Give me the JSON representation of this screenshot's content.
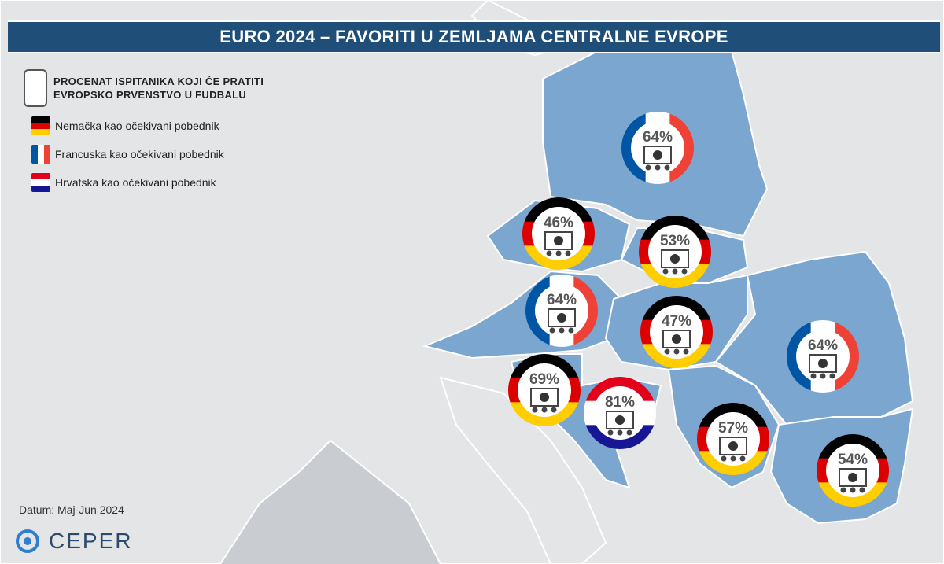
{
  "title": "EURO 2024 – FAVORITI U ZEMLJAMA CENTRALNE EVROPE",
  "legend": {
    "main": "PROCENAT ISPITANIKA KOJI ĆE PRATITI EVROPSKO PRVENSTVO U FUDBALU",
    "germany": "Nemačka kao očekivani pobednik",
    "france": "Francuska kao očekivani pobednik",
    "croatia": "Hrvatska kao očekivani pobednik"
  },
  "date": "Datum: Maj-Jun 2024",
  "logo": "CEPER",
  "colors": {
    "highlight": "#7aa6d0",
    "land": "#e3e5e7",
    "sea": "#c9cdd1",
    "title_bg": "#1f4e79"
  },
  "markers": [
    {
      "value": "64%",
      "flag": "france"
    },
    {
      "value": "46%",
      "flag": "germany"
    },
    {
      "value": "53%",
      "flag": "germany"
    },
    {
      "value": "64%",
      "flag": "france"
    },
    {
      "value": "47%",
      "flag": "germany"
    },
    {
      "value": "69%",
      "flag": "germany"
    },
    {
      "value": "81%",
      "flag": "croatia"
    },
    {
      "value": "64%",
      "flag": "france"
    },
    {
      "value": "57%",
      "flag": "germany"
    },
    {
      "value": "54%",
      "flag": "germany"
    }
  ]
}
